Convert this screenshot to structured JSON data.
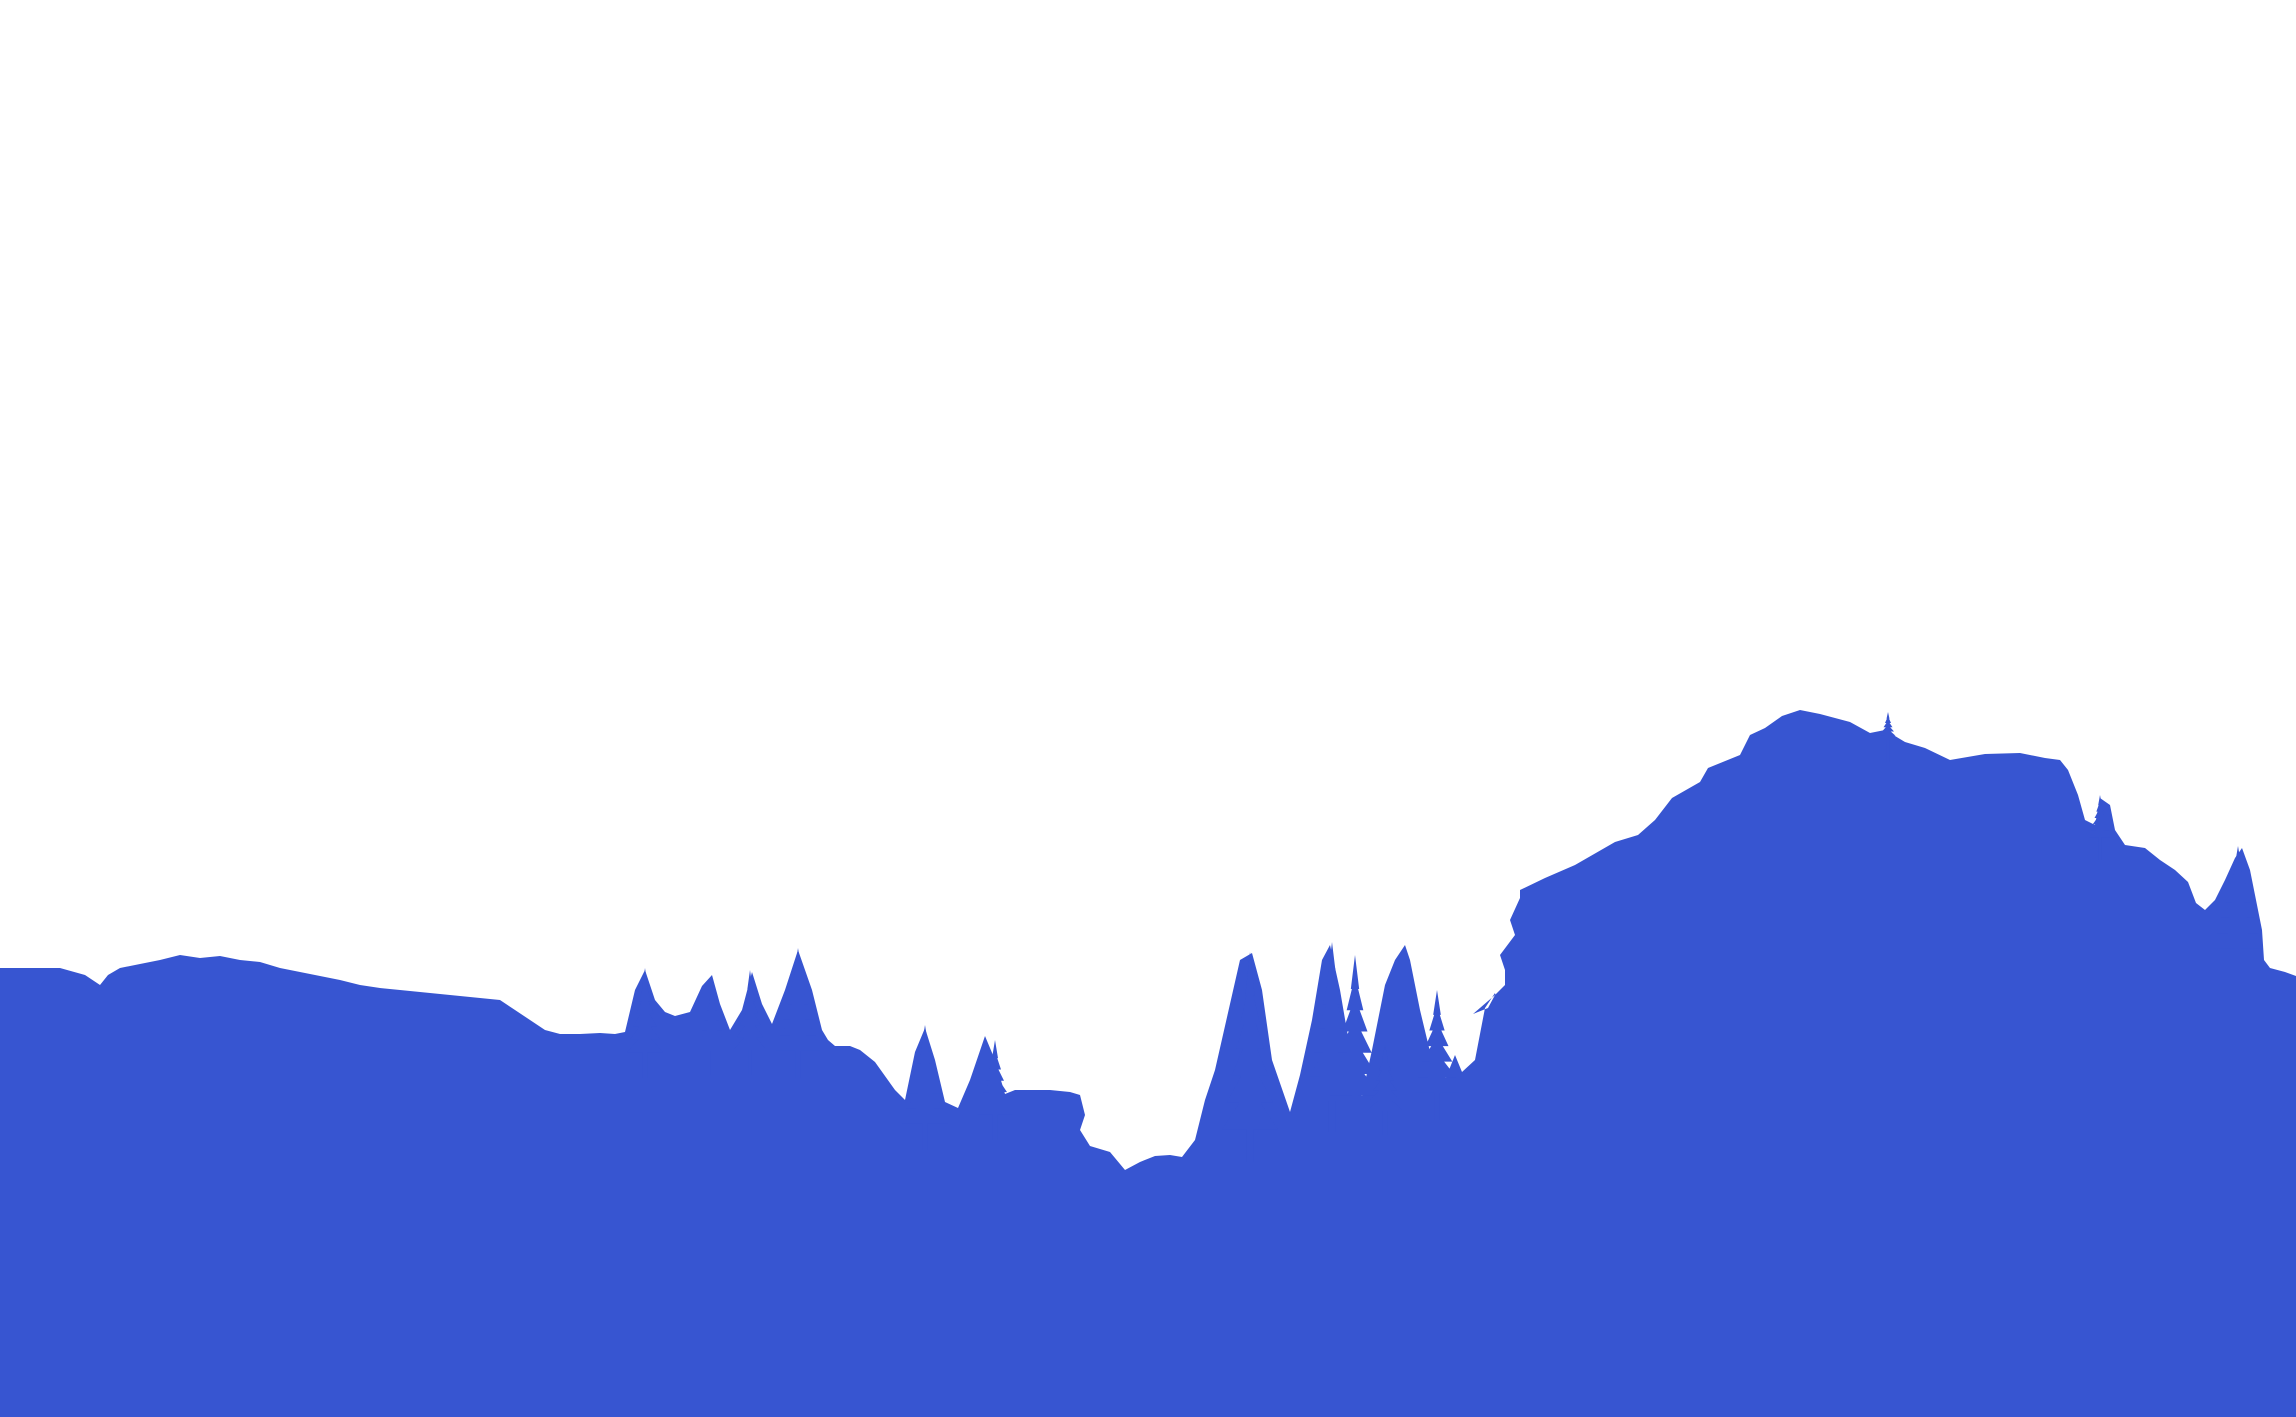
{
  "scene": {
    "sky_color": "#ffffff",
    "land_color": "#3755d1",
    "description_name": "mountain-silhouette-segmentation-mask"
  }
}
